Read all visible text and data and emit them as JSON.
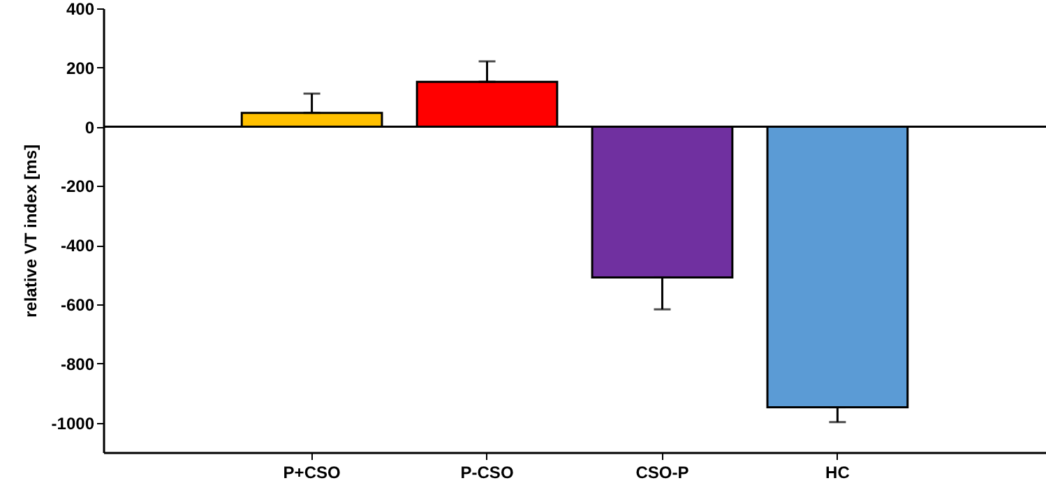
{
  "chart_data": {
    "type": "bar",
    "ylabel": "relative VT index [ms]",
    "categories": [
      "P+CSO",
      "P-CSO",
      "CSO-P",
      "HC"
    ],
    "values": [
      47,
      152,
      -509,
      -948
    ],
    "colors": [
      "#ffc000",
      "#ff0000",
      "#7030a0",
      "#5b9bd5"
    ],
    "errors": [
      [
        47,
        112
      ],
      [
        152,
        221
      ],
      [
        -617,
        -509
      ],
      [
        -998,
        -948
      ]
    ],
    "ylim": [
      -1100,
      400
    ],
    "yticks": [
      -1000,
      -800,
      -600,
      -400,
      -200,
      0,
      200,
      400
    ],
    "ref_lines": [
      {
        "axis": "y",
        "value": 0
      }
    ],
    "grid": false
  }
}
